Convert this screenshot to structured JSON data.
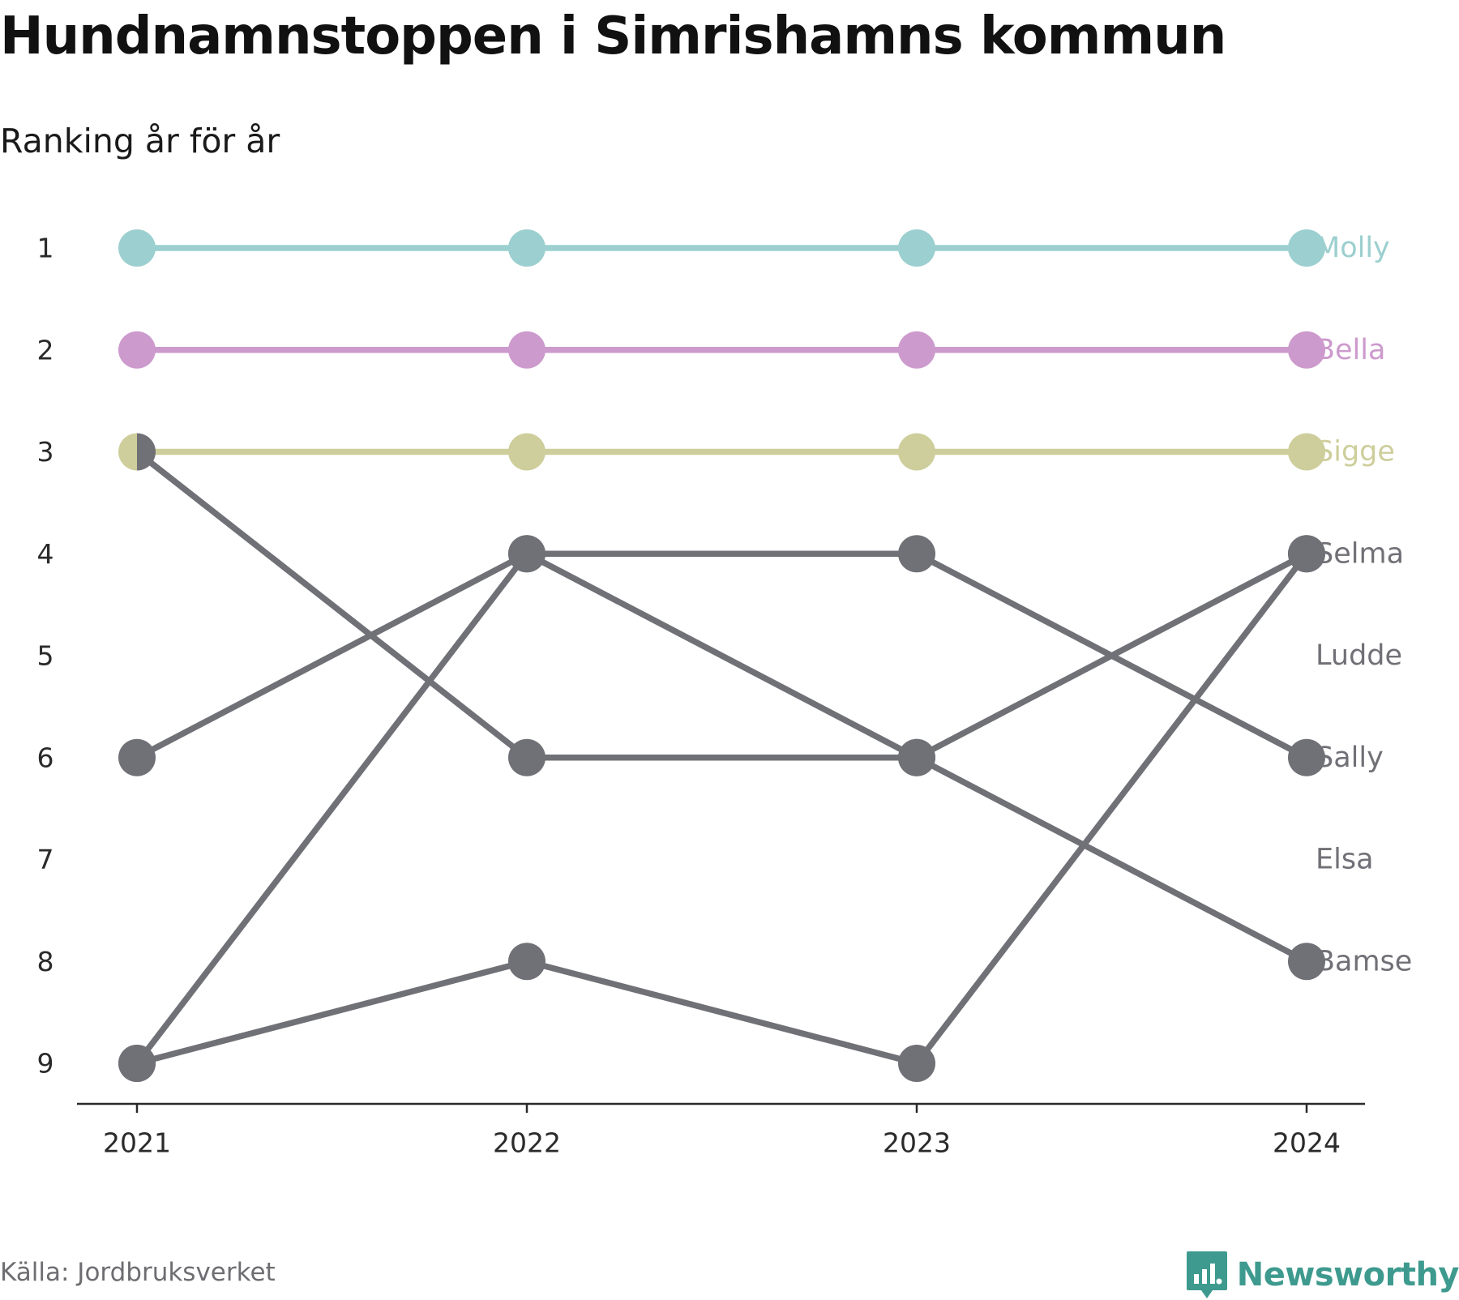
{
  "title": "Hundnamnstoppen i Simrishamns kommun",
  "subtitle": "Ranking år för år",
  "source": "Källa: Jordbruksverket",
  "brand": {
    "name": "Newsworthy",
    "icon": "newsworthy-logo-icon",
    "color": "#3e9a8e"
  },
  "chart_data": {
    "type": "line",
    "subtype": "bump",
    "x": [
      "2021",
      "2022",
      "2023",
      "2024"
    ],
    "y_ticks": [
      1,
      2,
      3,
      4,
      5,
      6,
      7,
      8,
      9
    ],
    "ylim": [
      1,
      9
    ],
    "y_reversed": true,
    "grid": false,
    "legend": "end-labels-right",
    "label_color_default": "#707077",
    "series": [
      {
        "name": "Molly",
        "color": "#9ccfcf",
        "values": [
          1,
          1,
          1,
          1
        ]
      },
      {
        "name": "Bella",
        "color": "#cc9acd",
        "values": [
          2,
          2,
          2,
          2
        ]
      },
      {
        "name": "Sigge",
        "color": "#cece9c",
        "values": [
          3,
          3,
          3,
          3
        ]
      },
      {
        "name": "Selma",
        "color": "#707077",
        "values": [
          9,
          8,
          9,
          4
        ]
      },
      {
        "name": "Ludde",
        "color": "#707077",
        "values": [
          null,
          null,
          null,
          null
        ]
      },
      {
        "name": "Sally",
        "color": "#707077",
        "values": [
          9,
          4,
          4,
          6
        ]
      },
      {
        "name": "Elsa",
        "color": "#707077",
        "values": [
          null,
          null,
          null,
          null
        ]
      },
      {
        "name": "Bamse",
        "color": "#707077",
        "values": [
          6,
          4,
          6,
          8
        ]
      },
      {
        "name": "",
        "color": "#707077",
        "values": [
          3,
          6,
          6,
          4
        ]
      }
    ]
  }
}
